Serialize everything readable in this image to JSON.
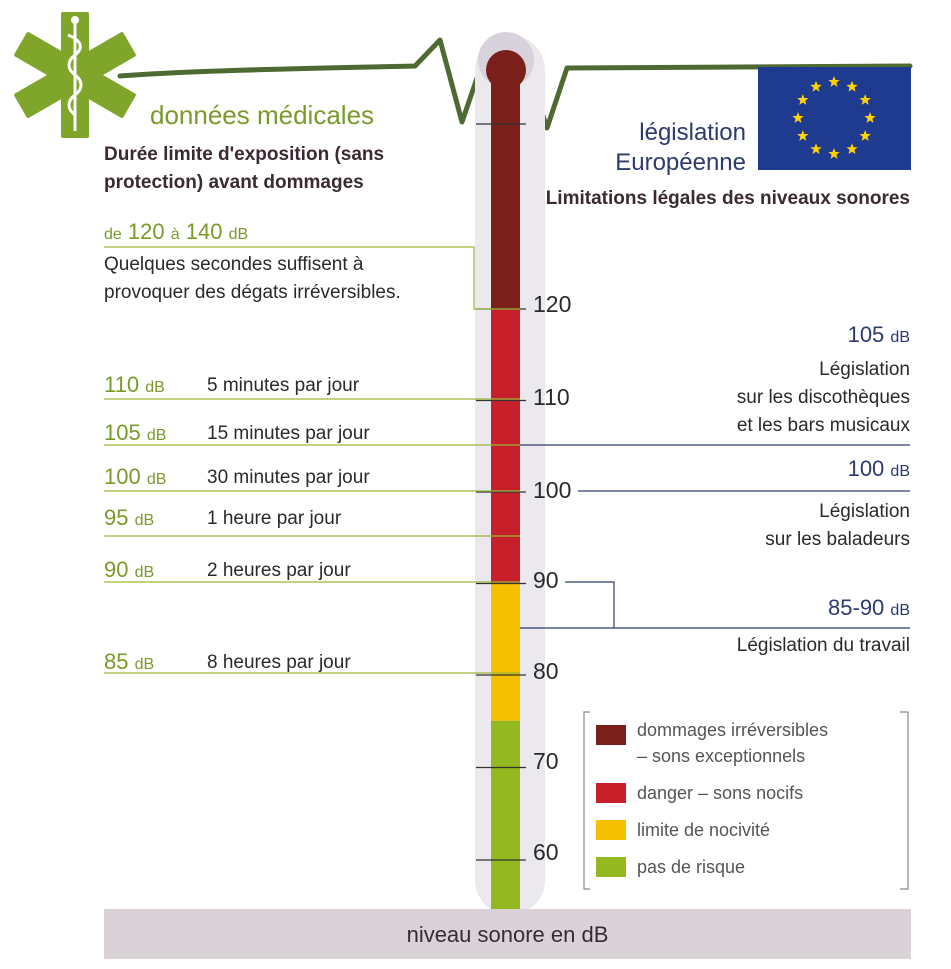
{
  "medical": {
    "title": "données médicales",
    "subtitle": "Durée limite d'exposition (sans protection) avant dommages",
    "range": {
      "from": "de",
      "low": "120",
      "mid": "à",
      "high": "140",
      "unit": "dB"
    },
    "range_desc": "Quelques secondes suffisent à provoquer des dégats irréversibles.",
    "levels": [
      {
        "value": "110",
        "unit": "dB",
        "duration": "5 minutes par jour"
      },
      {
        "value": "105",
        "unit": "dB",
        "duration": "15 minutes par jour"
      },
      {
        "value": "100",
        "unit": "dB",
        "duration": "30 minutes par jour"
      },
      {
        "value": "95",
        "unit": "dB",
        "duration": "1 heure par jour"
      },
      {
        "value": "90",
        "unit": "dB",
        "duration": "2 heures par jour"
      },
      {
        "value": "85",
        "unit": "dB",
        "duration": "8 heures par jour"
      }
    ]
  },
  "eu": {
    "title_line1": "législation",
    "title_line2": "Européenne",
    "subtitle": "Limitations légales des niveaux sonores",
    "items": [
      {
        "value": "105",
        "unit": "dB",
        "desc_lines": [
          "Législation",
          "sur les discothèques",
          "et les bars musicaux"
        ]
      },
      {
        "value": "100",
        "unit": "dB",
        "desc_lines": [
          "Législation",
          "sur les baladeurs"
        ]
      },
      {
        "value": "85-90",
        "unit": "dB",
        "desc_lines": [
          "Législation du travail"
        ]
      }
    ]
  },
  "scale": {
    "ticks": [
      "120",
      "110",
      "100",
      "90",
      "80",
      "70",
      "60"
    ],
    "axis_label": "niveau sonore en dB",
    "bands": [
      {
        "category": "dommages irréversibles – sons exceptionnels",
        "from": 120,
        "to": 140,
        "color": "#7a1f1a"
      },
      {
        "category": "danger – sons nocifs",
        "from": 90,
        "to": 120,
        "color": "#c8202b"
      },
      {
        "category": "limite de nocivité",
        "from": 75,
        "to": 90,
        "color": "#f5c000"
      },
      {
        "category": "pas de risque",
        "from": 56,
        "to": 75,
        "color": "#94b81f"
      }
    ]
  },
  "legend": {
    "items": [
      {
        "line1": "dommages irréversibles",
        "line2": "– sons exceptionnels",
        "color": "#7a1f1a"
      },
      {
        "line1": "danger – sons nocifs",
        "line2": "",
        "color": "#c8202b"
      },
      {
        "line1": "limite de nocivité",
        "line2": "",
        "color": "#f5c000"
      },
      {
        "line1": "pas de risque",
        "line2": "",
        "color": "#94b81f"
      }
    ]
  },
  "colors": {
    "medical_green": "#7a9a2a",
    "eu_blue": "#2d3a6e",
    "eu_flag": "#1f3b8f",
    "star_yellow": "#ffd200",
    "footer_bg": "#d9d3d8"
  },
  "icons": {
    "medical": "star-of-life-icon",
    "eu_flag": "eu-flag-icon"
  }
}
